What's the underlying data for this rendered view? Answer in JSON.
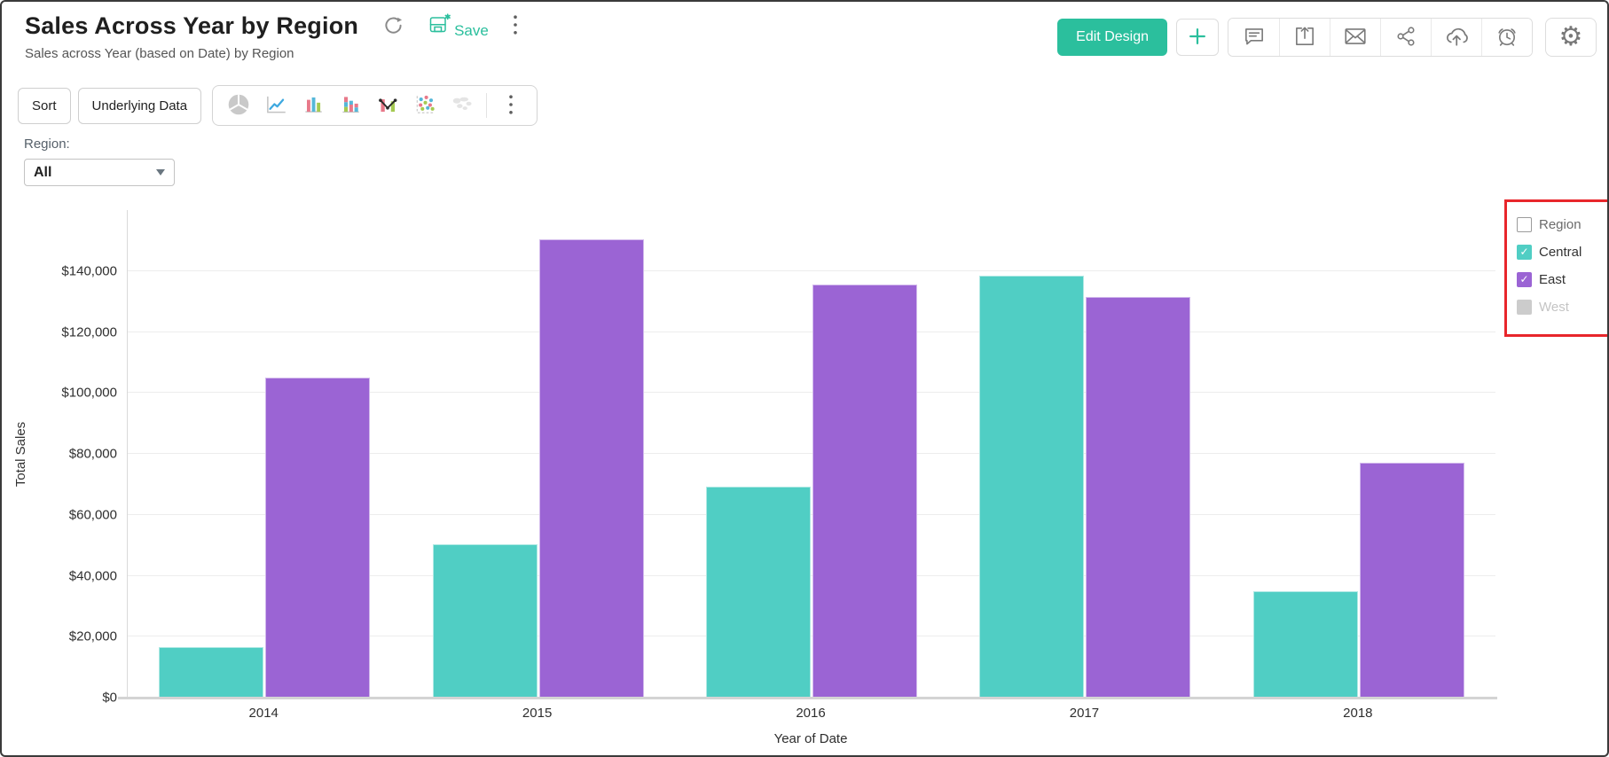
{
  "header": {
    "title": "Sales Across Year by Region",
    "subtitle": "Sales across Year (based on Date) by Region",
    "refresh_icon": "refresh-icon",
    "save": {
      "label": "Save",
      "icon": "save-floppy-icon",
      "unsaved_marker": "*"
    },
    "menu_icon": "kebab-menu-icon",
    "actions": {
      "edit_design_label": "Edit Design",
      "plus_icon": "plus-icon",
      "icons": [
        "comment-icon",
        "export-icon",
        "email-icon",
        "share-icon",
        "publish-cloud-icon",
        "alert-icon"
      ],
      "settings_icon": "settings-gear-icon",
      "settings_glyph": "⚙"
    }
  },
  "toolbar": {
    "sort_label": "Sort",
    "underlying_data_label": "Underlying Data",
    "chart_type_icons": [
      "pie-chart-icon",
      "line-chart-icon",
      "bar-chart-icon",
      "stacked-bar-chart-icon",
      "bar-line-combo-icon",
      "scatter-plot-icon",
      "map-chart-icon"
    ],
    "more_icon": "kebab-menu-icon"
  },
  "filter": {
    "label": "Region:",
    "value": "All"
  },
  "legend": {
    "header": {
      "label": "Region",
      "checked": false
    },
    "items": [
      {
        "label": "Central",
        "color": "#50cec4",
        "checked": true,
        "enabled": true
      },
      {
        "label": "East",
        "color": "#9b64d4",
        "checked": true,
        "enabled": true
      },
      {
        "label": "West",
        "color": "#cccccc",
        "checked": false,
        "enabled": false
      }
    ],
    "highlight_color": "#e8262b",
    "check_glyph": "✓"
  },
  "chart_data": {
    "type": "bar",
    "title": "Sales Across Year by Region",
    "categories": [
      "2014",
      "2015",
      "2016",
      "2017",
      "2018"
    ],
    "series": [
      {
        "name": "Central",
        "color": "#50cec4",
        "values": [
          16500,
          50300,
          69300,
          138500,
          35000
        ]
      },
      {
        "name": "East",
        "color": "#9b64d4",
        "values": [
          105000,
          150500,
          135500,
          131500,
          77000
        ]
      }
    ],
    "xlabel": "Year of Date",
    "ylabel": "Total Sales",
    "ylim": [
      0,
      160000
    ],
    "yticks": [
      {
        "value": 0,
        "label": "$0"
      },
      {
        "value": 20000,
        "label": "$20,000"
      },
      {
        "value": 40000,
        "label": "$40,000"
      },
      {
        "value": 60000,
        "label": "$60,000"
      },
      {
        "value": 80000,
        "label": "$80,000"
      },
      {
        "value": 100000,
        "label": "$100,000"
      },
      {
        "value": 120000,
        "label": "$120,000"
      },
      {
        "value": 140000,
        "label": "$140,000"
      }
    ],
    "grid": true,
    "legend_position": "right"
  },
  "colors": {
    "accent_teal": "#2bbf9d",
    "bar_teal": "#50cec4",
    "bar_purple": "#9b64d4",
    "annotation_red": "#e8262b"
  }
}
